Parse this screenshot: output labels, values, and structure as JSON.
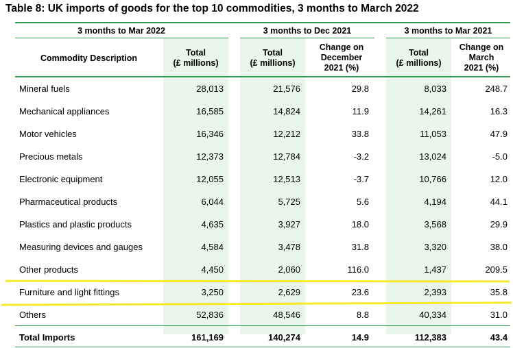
{
  "title": "Table 8: UK imports of goods for the top 10 commodities, 3 months to March 2022",
  "groups": {
    "g1": "3 months to Mar 2022",
    "g2": "3 months to Dec 2021",
    "g3": "3 months to Mar 2021"
  },
  "headers": {
    "desc": "Commodity Description",
    "total1_a": "Total",
    "total1_b": "(£ millions)",
    "total2_a": "Total",
    "total2_b": "(£ millions)",
    "chg2_a": "Change on",
    "chg2_b": "December",
    "chg2_c": "2021 (%)",
    "total3_a": "Total",
    "total3_b": "(£ millions)",
    "chg3_a": "Change on",
    "chg3_b": "March",
    "chg3_c": "2021 (%)"
  },
  "rows": [
    {
      "desc": "Mineral fuels",
      "t1": "28,013",
      "t2": "21,576",
      "c2": "29.8",
      "t3": "8,033",
      "c3": "248.7"
    },
    {
      "desc": "Mechanical appliances",
      "t1": "16,585",
      "t2": "14,824",
      "c2": "11.9",
      "t3": "14,261",
      "c3": "16.3"
    },
    {
      "desc": "Motor vehicles",
      "t1": "16,346",
      "t2": "12,212",
      "c2": "33.8",
      "t3": "11,053",
      "c3": "47.9"
    },
    {
      "desc": "Precious metals",
      "t1": "12,373",
      "t2": "12,784",
      "c2": "-3.2",
      "t3": "13,024",
      "c3": "-5.0"
    },
    {
      "desc": "Electronic equipment",
      "t1": "12,055",
      "t2": "12,513",
      "c2": "-3.7",
      "t3": "10,766",
      "c3": "12.0"
    },
    {
      "desc": "Pharmaceutical products",
      "t1": "6,044",
      "t2": "5,725",
      "c2": "5.6",
      "t3": "4,194",
      "c3": "44.1"
    },
    {
      "desc": "Plastics and plastic products",
      "t1": "4,635",
      "t2": "3,927",
      "c2": "18.0",
      "t3": "3,568",
      "c3": "29.9"
    },
    {
      "desc": "Measuring devices and gauges",
      "t1": "4,584",
      "t2": "3,478",
      "c2": "31.8",
      "t3": "3,320",
      "c3": "38.0"
    },
    {
      "desc": "Other products",
      "t1": "4,450",
      "t2": "2,060",
      "c2": "116.0",
      "t3": "1,437",
      "c3": "209.5"
    },
    {
      "desc": "Furniture and light fittings",
      "t1": "3,250",
      "t2": "2,629",
      "c2": "23.6",
      "t3": "2,393",
      "c3": "35.8"
    },
    {
      "desc": "Others",
      "t1": "52,836",
      "t2": "48,546",
      "c2": "8.8",
      "t3": "40,334",
      "c3": "31.0"
    }
  ],
  "total_row": {
    "desc": "Total Imports",
    "t1": "161,169",
    "t2": "140,274",
    "c2": "14.9",
    "t3": "112,383",
    "c3": "43.4"
  },
  "colors": {
    "rule": "#2e9a4b",
    "shade": "#e8f6ec",
    "highlight": "#f5ea2a"
  }
}
